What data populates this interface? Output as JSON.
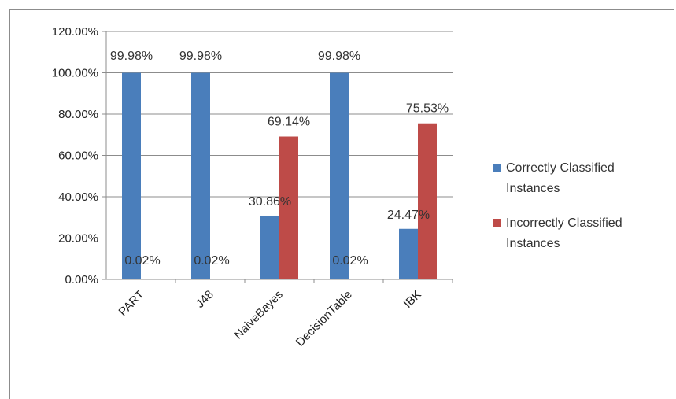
{
  "chart_data": {
    "type": "bar",
    "title": "",
    "xlabel": "",
    "ylabel": "",
    "categories": [
      "PART",
      "J48",
      "NaiveBayes",
      "DecisionTable",
      "IBK"
    ],
    "ylim": [
      0,
      1.2
    ],
    "yticks": [
      "0.00%",
      "20.00%",
      "40.00%",
      "60.00%",
      "80.00%",
      "100.00%",
      "120.00%"
    ],
    "grid": true,
    "legend_position": "right",
    "series": [
      {
        "name_lines": [
          "Correctly Classified",
          "Instances"
        ],
        "color": "#4a7ebb",
        "values": [
          0.9998,
          0.9998,
          0.3086,
          0.9998,
          0.2447
        ],
        "labels": [
          "99.98%",
          "99.98%",
          "30.86%",
          "99.98%",
          "24.47%"
        ]
      },
      {
        "name_lines": [
          "Incorrectly Classified",
          "Instances"
        ],
        "color": "#be4b48",
        "values": [
          0.0002,
          0.0002,
          0.6914,
          0.0002,
          0.7553
        ],
        "labels": [
          "0.02%",
          "0.02%",
          "69.14%",
          "0.02%",
          "75.53%"
        ]
      }
    ]
  }
}
